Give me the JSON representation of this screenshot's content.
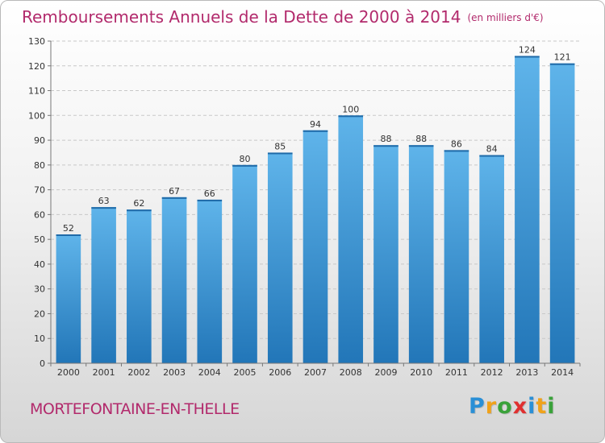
{
  "chart_data": {
    "type": "bar",
    "title": "Remboursements Annuels de la Dette de 2000 à 2014",
    "subtitle": "(en milliers d'€)",
    "categories": [
      "2000",
      "2001",
      "2002",
      "2003",
      "2004",
      "2005",
      "2006",
      "2007",
      "2008",
      "2009",
      "2010",
      "2011",
      "2012",
      "2013",
      "2014"
    ],
    "values": [
      52,
      63,
      62,
      67,
      66,
      80,
      85,
      94,
      100,
      88,
      88,
      86,
      84,
      124,
      121
    ],
    "xlabel": "",
    "ylabel": "",
    "ylim": [
      0,
      130
    ],
    "yticks": [
      0,
      10,
      20,
      30,
      40,
      50,
      60,
      70,
      80,
      90,
      100,
      110,
      120,
      130
    ],
    "grid": "horizontal dashed",
    "legend": "none",
    "bar_color": "#3a95d6"
  },
  "footer": {
    "commune": "MORTEFONTAINE-EN-THELLE",
    "logo_letters": [
      "P",
      "r",
      "o",
      "x",
      "i",
      "t",
      "i"
    ],
    "logo_colors": [
      "#2a8fd6",
      "#f0a21a",
      "#3aa23a",
      "#e03030",
      "#2a8fd6",
      "#f0a21a",
      "#3aa23a"
    ]
  }
}
